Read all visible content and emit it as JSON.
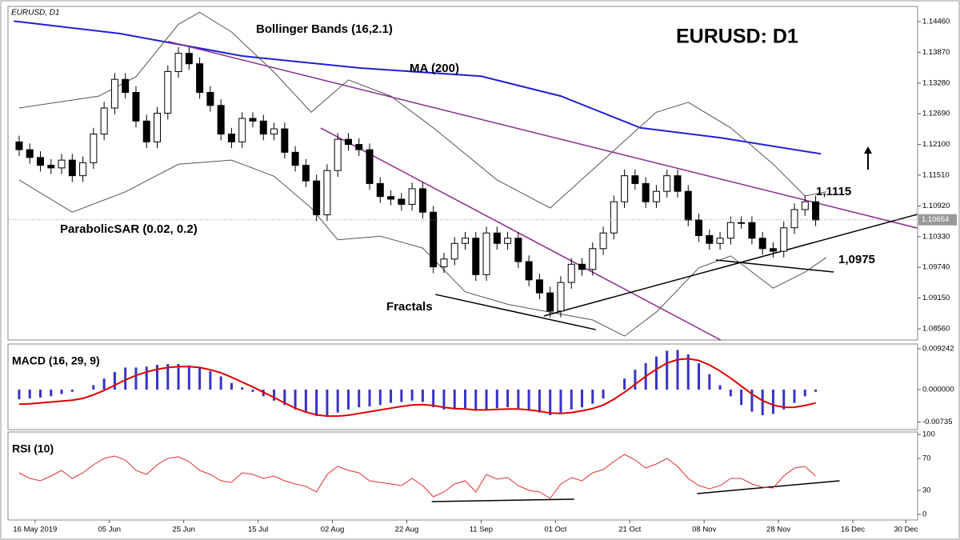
{
  "chart_data": [
    {
      "type": "candlestick",
      "symbol_label": "EURUSD, D1",
      "title": "EURUSD: D1",
      "annotations": [
        "Bollinger Bands (16,2.1)",
        "MA (200)",
        "ParabolicSAR (0.02, 0.2)",
        "Fractals",
        "1,1115",
        "1,0975"
      ],
      "x": [
        0,
        2,
        4,
        6,
        8,
        10,
        12,
        14,
        16,
        18,
        20,
        22,
        24,
        26,
        28,
        30,
        32,
        34,
        36,
        38,
        40,
        42,
        44,
        46,
        48,
        50,
        52,
        54,
        56,
        58,
        60,
        62,
        64,
        66,
        68,
        70,
        72,
        74,
        76,
        78,
        80,
        82,
        84,
        86,
        88,
        90,
        92,
        94,
        96,
        98,
        100,
        102,
        104,
        106,
        108,
        110,
        112,
        114,
        116,
        118,
        120,
        122,
        124,
        126,
        128,
        130,
        132,
        134,
        136,
        138,
        140,
        142,
        144,
        146,
        148,
        150
      ],
      "open": [
        1.1215,
        1.12,
        1.1185,
        1.117,
        1.1165,
        1.118,
        1.115,
        1.1175,
        1.123,
        1.128,
        1.1335,
        1.131,
        1.1255,
        1.1215,
        1.127,
        1.135,
        1.1385,
        1.1365,
        1.131,
        1.1285,
        1.123,
        1.1215,
        1.126,
        1.1255,
        1.123,
        1.124,
        1.1195,
        1.117,
        1.114,
        1.1075,
        1.116,
        1.122,
        1.121,
        1.12,
        1.1135,
        1.111,
        1.1105,
        1.1095,
        1.1125,
        1.108,
        1.0975,
        1.099,
        1.102,
        1.103,
        1.096,
        1.104,
        1.102,
        1.103,
        1.0985,
        1.095,
        1.0925,
        1.089,
        1.0945,
        1.098,
        1.097,
        1.101,
        1.104,
        1.11,
        1.115,
        1.1135,
        1.11,
        1.112,
        1.115,
        1.112,
        1.1065,
        1.1035,
        1.102,
        1.103,
        1.106,
        1.106,
        1.103,
        1.101,
        1.1005,
        1.105,
        1.1085,
        1.11
      ],
      "high": [
        1.1227,
        1.1212,
        1.1197,
        1.1182,
        1.1192,
        1.1192,
        1.1187,
        1.1242,
        1.1292,
        1.1347,
        1.1347,
        1.1322,
        1.1267,
        1.1282,
        1.1362,
        1.1397,
        1.1397,
        1.1377,
        1.1322,
        1.1297,
        1.1242,
        1.1272,
        1.1272,
        1.1267,
        1.1252,
        1.1252,
        1.1207,
        1.1182,
        1.1152,
        1.1172,
        1.1232,
        1.1232,
        1.1222,
        1.1212,
        1.1147,
        1.1122,
        1.1117,
        1.1137,
        1.1137,
        1.1092,
        1.1002,
        1.1032,
        1.1042,
        1.1042,
        1.1052,
        1.1052,
        1.1042,
        1.1042,
        1.0997,
        1.0962,
        1.0937,
        1.0957,
        1.0992,
        1.0992,
        1.1022,
        1.1052,
        1.1112,
        1.1162,
        1.1162,
        1.1147,
        1.1132,
        1.1162,
        1.1162,
        1.1132,
        1.1077,
        1.1047,
        1.1042,
        1.1072,
        1.1072,
        1.1072,
        1.1042,
        1.1022,
        1.1062,
        1.1097,
        1.1112,
        1.1112
      ],
      "low": [
        1.1188,
        1.1173,
        1.1158,
        1.1153,
        1.1153,
        1.1138,
        1.1138,
        1.1163,
        1.1218,
        1.1268,
        1.1298,
        1.1243,
        1.1203,
        1.1203,
        1.1258,
        1.1338,
        1.1353,
        1.1298,
        1.1273,
        1.1218,
        1.1203,
        1.1203,
        1.1243,
        1.1218,
        1.1218,
        1.1183,
        1.1158,
        1.1128,
        1.1063,
        1.1063,
        1.1148,
        1.1198,
        1.1188,
        1.1123,
        1.1098,
        1.1093,
        1.1083,
        1.1083,
        1.1068,
        1.0963,
        1.0963,
        1.0978,
        1.1008,
        1.0948,
        1.0948,
        1.1008,
        1.1008,
        1.0973,
        1.0938,
        1.0913,
        1.0878,
        1.0878,
        1.0933,
        1.0958,
        1.0958,
        1.0998,
        1.1028,
        1.1088,
        1.1123,
        1.1088,
        1.1088,
        1.1108,
        1.1108,
        1.1053,
        1.1023,
        1.1008,
        1.1008,
        1.1018,
        1.1048,
        1.1018,
        1.0998,
        1.0993,
        1.0993,
        1.1038,
        1.1073,
        1.1053
      ],
      "close": [
        1.12,
        1.1185,
        1.117,
        1.1165,
        1.118,
        1.115,
        1.1175,
        1.123,
        1.128,
        1.1335,
        1.131,
        1.1255,
        1.1215,
        1.127,
        1.135,
        1.1385,
        1.1365,
        1.131,
        1.1285,
        1.123,
        1.1215,
        1.126,
        1.1255,
        1.123,
        1.124,
        1.1195,
        1.117,
        1.114,
        1.1075,
        1.116,
        1.122,
        1.121,
        1.12,
        1.1135,
        1.111,
        1.1105,
        1.1095,
        1.1125,
        1.108,
        1.0975,
        1.099,
        1.102,
        1.103,
        1.096,
        1.104,
        1.102,
        1.103,
        1.0985,
        1.095,
        1.0925,
        1.089,
        1.0945,
        1.098,
        1.097,
        1.101,
        1.104,
        1.11,
        1.115,
        1.1135,
        1.11,
        1.112,
        1.115,
        1.112,
        1.1065,
        1.1035,
        1.102,
        1.103,
        1.106,
        1.106,
        1.103,
        1.101,
        1.1005,
        1.105,
        1.1085,
        1.11,
        1.1065
      ],
      "up_color": "#ffffff",
      "down_color": "#000000",
      "lines": [
        {
          "color": "#1f1fd8",
          "width": 2,
          "x": [
            -1,
            19,
            42,
            64,
            87,
            102,
            117,
            132,
            151
          ],
          "values": [
            1.1447,
            1.1423,
            1.138,
            1.1357,
            1.1341,
            1.1303,
            1.1242,
            1.1223,
            1.1192
          ]
        },
        {
          "color": "#555555",
          "width": 1,
          "x": [
            0,
            15,
            22,
            30,
            34,
            40,
            48,
            55,
            62,
            70,
            78,
            90,
            100,
            110,
            120,
            126,
            134,
            142,
            148,
            152
          ],
          "values": [
            1.128,
            1.1303,
            1.134,
            1.1441,
            1.1464,
            1.1426,
            1.1349,
            1.1272,
            1.1334,
            1.1303,
            1.1242,
            1.1142,
            1.1088,
            1.118,
            1.1272,
            1.1291,
            1.1242,
            1.1172,
            1.1111,
            1.1119
          ]
        },
        {
          "color": "#555555",
          "width": 1,
          "x": [
            0,
            10,
            20,
            30,
            40,
            48,
            55,
            60,
            68,
            76,
            84,
            92,
            100,
            108,
            114,
            120,
            128,
            134,
            142,
            148,
            152
          ],
          "values": [
            1.1142,
            1.108,
            1.1119,
            1.1172,
            1.118,
            1.1149,
            1.1088,
            1.1027,
            1.1034,
            1.1011,
            1.0927,
            1.0903,
            1.0888,
            1.0873,
            1.0842,
            1.0888,
            1.0973,
            1.0996,
            1.0934,
            1.0965,
            1.0993
          ]
        }
      ],
      "trendlines": [
        {
          "color": "#8b2a8b",
          "x": [
            28.0,
            169.1
          ],
          "values": [
            1.1408,
            1.10496
          ]
        },
        {
          "color": "#8b2a8b",
          "x": [
            56.8,
            132.1
          ],
          "values": [
            1.12416,
            1.08345
          ]
        },
        {
          "color": "#000000",
          "x": [
            78.4,
            108.6
          ],
          "values": [
            1.0922,
            1.08544
          ]
        },
        {
          "color": "#000000",
          "x": [
            98.8,
            169.1
          ],
          "values": [
            1.08806,
            1.10757
          ]
        },
        {
          "color": "#000000",
          "x": [
            131.2,
            153.4
          ],
          "values": [
            1.09881,
            1.09651
          ]
        }
      ],
      "last_price": {
        "value": 1.10654,
        "label": "1.10654"
      },
      "xlim": [
        -2.1,
        169.2
      ],
      "ylim": [
        1.08345,
        1.14752
      ],
      "yticks": [
        {
          "value": 1.1446,
          "label": "1.14460"
        },
        {
          "value": 1.1387,
          "label": "1.13870"
        },
        {
          "value": 1.1328,
          "label": "1.13280"
        },
        {
          "value": 1.1269,
          "label": "1.12690"
        },
        {
          "value": 1.121,
          "label": "1.12100"
        },
        {
          "value": 1.1151,
          "label": "1.11510"
        },
        {
          "value": 1.1092,
          "label": "1.10920"
        },
        {
          "value": 1.1033,
          "label": "1.10330"
        },
        {
          "value": 1.0974,
          "label": "1.09740"
        },
        {
          "value": 1.0915,
          "label": "1.09150"
        },
        {
          "value": 1.0856,
          "label": "1.08560"
        }
      ]
    },
    {
      "type": "macd",
      "title": "MACD (16, 29, 9)",
      "x": [
        0,
        2,
        4,
        6,
        8,
        10,
        12,
        14,
        16,
        18,
        20,
        22,
        24,
        26,
        28,
        30,
        32,
        34,
        36,
        38,
        40,
        42,
        44,
        46,
        48,
        50,
        52,
        54,
        56,
        58,
        60,
        62,
        64,
        66,
        68,
        70,
        72,
        74,
        76,
        78,
        80,
        82,
        84,
        86,
        88,
        90,
        92,
        94,
        96,
        98,
        100,
        102,
        104,
        106,
        108,
        110,
        112,
        114,
        116,
        118,
        120,
        122,
        124,
        126,
        128,
        130,
        132,
        134,
        136,
        138,
        140,
        142,
        144,
        146,
        148,
        150
      ],
      "series": [
        {
          "color": "#3434c8",
          "style": "bar",
          "values": [
            -0.0022,
            -0.002,
            -0.0018,
            -0.0015,
            -0.001,
            -0.0005,
            0,
            0.001,
            0.0025,
            0.004,
            0.005,
            0.005,
            0.0052,
            0.0056,
            0.0058,
            0.0058,
            0.0055,
            0.005,
            0.0042,
            0.003,
            0.0015,
            0.0005,
            -0.0005,
            -0.0015,
            -0.0025,
            -0.0035,
            -0.0045,
            -0.0052,
            -0.006,
            -0.0058,
            -0.0052,
            -0.0045,
            -0.004,
            -0.0038,
            -0.0035,
            -0.003,
            -0.0028,
            -0.0025,
            -0.0028,
            -0.004,
            -0.0045,
            -0.0045,
            -0.0042,
            -0.0048,
            -0.0045,
            -0.0042,
            -0.004,
            -0.0042,
            -0.0048,
            -0.0052,
            -0.0058,
            -0.0052,
            -0.0045,
            -0.004,
            -0.0032,
            -0.002,
            0,
            0.0025,
            0.0045,
            0.006,
            0.0075,
            0.0088,
            0.009,
            0.008,
            0.006,
            0.0035,
            0.001,
            -0.0015,
            -0.0035,
            -0.005,
            -0.0058,
            -0.0055,
            -0.0045,
            -0.003,
            -0.0015,
            -0.0005
          ]
        },
        {
          "color": "#e00000",
          "style": "line",
          "values": [
            -0.0033,
            -0.0032,
            -0.003,
            -0.0028,
            -0.0026,
            -0.0024,
            -0.002,
            -0.0012,
            -0.0002,
            0.001,
            0.0022,
            0.0032,
            0.004,
            0.0046,
            0.005,
            0.0052,
            0.0052,
            0.005,
            0.0045,
            0.0038,
            0.0028,
            0.0017,
            0.0006,
            -0.0006,
            -0.0018,
            -0.003,
            -0.0042,
            -0.0051,
            -0.0057,
            -0.006,
            -0.006,
            -0.0058,
            -0.0054,
            -0.005,
            -0.0046,
            -0.0042,
            -0.0038,
            -0.0035,
            -0.0034,
            -0.0036,
            -0.004,
            -0.0043,
            -0.0044,
            -0.0046,
            -0.0046,
            -0.0045,
            -0.0044,
            -0.0044,
            -0.0046,
            -0.0049,
            -0.0053,
            -0.0054,
            -0.0052,
            -0.0048,
            -0.0043,
            -0.0035,
            -0.0022,
            -0.0006,
            0.0012,
            0.003,
            0.0046,
            0.006,
            0.0068,
            0.007,
            0.0066,
            0.0056,
            0.0042,
            0.0026,
            0.0008,
            -0.001,
            -0.0025,
            -0.0035,
            -0.004,
            -0.004,
            -0.0036,
            -0.003
          ]
        }
      ],
      "xlim": [
        -2.1,
        169.2
      ],
      "ylim": [
        -0.00906,
        0.01033
      ],
      "yticks": [
        {
          "value": 0.009242,
          "label": "0.009242"
        },
        {
          "value": 0,
          "label": "0.000000"
        },
        {
          "value": -0.00735,
          "label": "-0.00735"
        }
      ]
    },
    {
      "type": "line",
      "title": "RSI (10)",
      "x": [
        0,
        2,
        4,
        6,
        8,
        10,
        12,
        14,
        16,
        18,
        20,
        22,
        24,
        26,
        28,
        30,
        32,
        34,
        36,
        38,
        40,
        42,
        44,
        46,
        48,
        50,
        52,
        54,
        56,
        58,
        60,
        62,
        64,
        66,
        68,
        70,
        72,
        74,
        76,
        78,
        80,
        82,
        84,
        86,
        88,
        90,
        92,
        94,
        96,
        98,
        100,
        102,
        104,
        106,
        108,
        110,
        112,
        114,
        116,
        118,
        120,
        122,
        124,
        126,
        128,
        130,
        132,
        134,
        136,
        138,
        140,
        142,
        144,
        146,
        148,
        150
      ],
      "series": [
        {
          "color": "#e03030",
          "values": [
            52,
            45,
            42,
            48,
            55,
            45,
            52,
            62,
            70,
            73,
            68,
            55,
            50,
            62,
            70,
            72,
            66,
            55,
            50,
            42,
            40,
            52,
            50,
            45,
            48,
            42,
            38,
            35,
            28,
            50,
            60,
            55,
            52,
            42,
            40,
            38,
            36,
            45,
            36,
            22,
            28,
            38,
            42,
            28,
            50,
            44,
            46,
            36,
            30,
            28,
            20,
            38,
            46,
            42,
            52,
            56,
            66,
            75,
            68,
            58,
            63,
            70,
            60,
            45,
            36,
            32,
            36,
            45,
            45,
            38,
            34,
            33,
            48,
            58,
            60,
            48
          ]
        }
      ],
      "trendlines": [
        {
          "color": "#000000",
          "x": [
            77.7,
            104.5
          ],
          "values": [
            16,
            19
          ]
        },
        {
          "color": "#000000",
          "x": [
            127.7,
            154.5
          ],
          "values": [
            26,
            42
          ]
        }
      ],
      "xlim": [
        -2.1,
        169.2
      ],
      "ylim": [
        -7,
        103
      ],
      "yticks": [
        100,
        70,
        30,
        0
      ],
      "xticks": [
        {
          "value": 3,
          "label": "16 May 2019"
        },
        {
          "value": 17,
          "label": "05 Jun"
        },
        {
          "value": 31,
          "label": "25 Jun"
        },
        {
          "value": 45,
          "label": "15 Jul"
        },
        {
          "value": 59,
          "label": "02 Aug"
        },
        {
          "value": 73,
          "label": "22 Aug"
        },
        {
          "value": 87,
          "label": "11 Sep"
        },
        {
          "value": 101,
          "label": "01 Oct"
        },
        {
          "value": 115,
          "label": "21 Oct"
        },
        {
          "value": 129,
          "label": "08 Nov"
        },
        {
          "value": 143,
          "label": "28 Nov"
        },
        {
          "value": 157,
          "label": "16 Dec"
        },
        {
          "value": 167,
          "label": "30 Dec"
        }
      ]
    }
  ]
}
